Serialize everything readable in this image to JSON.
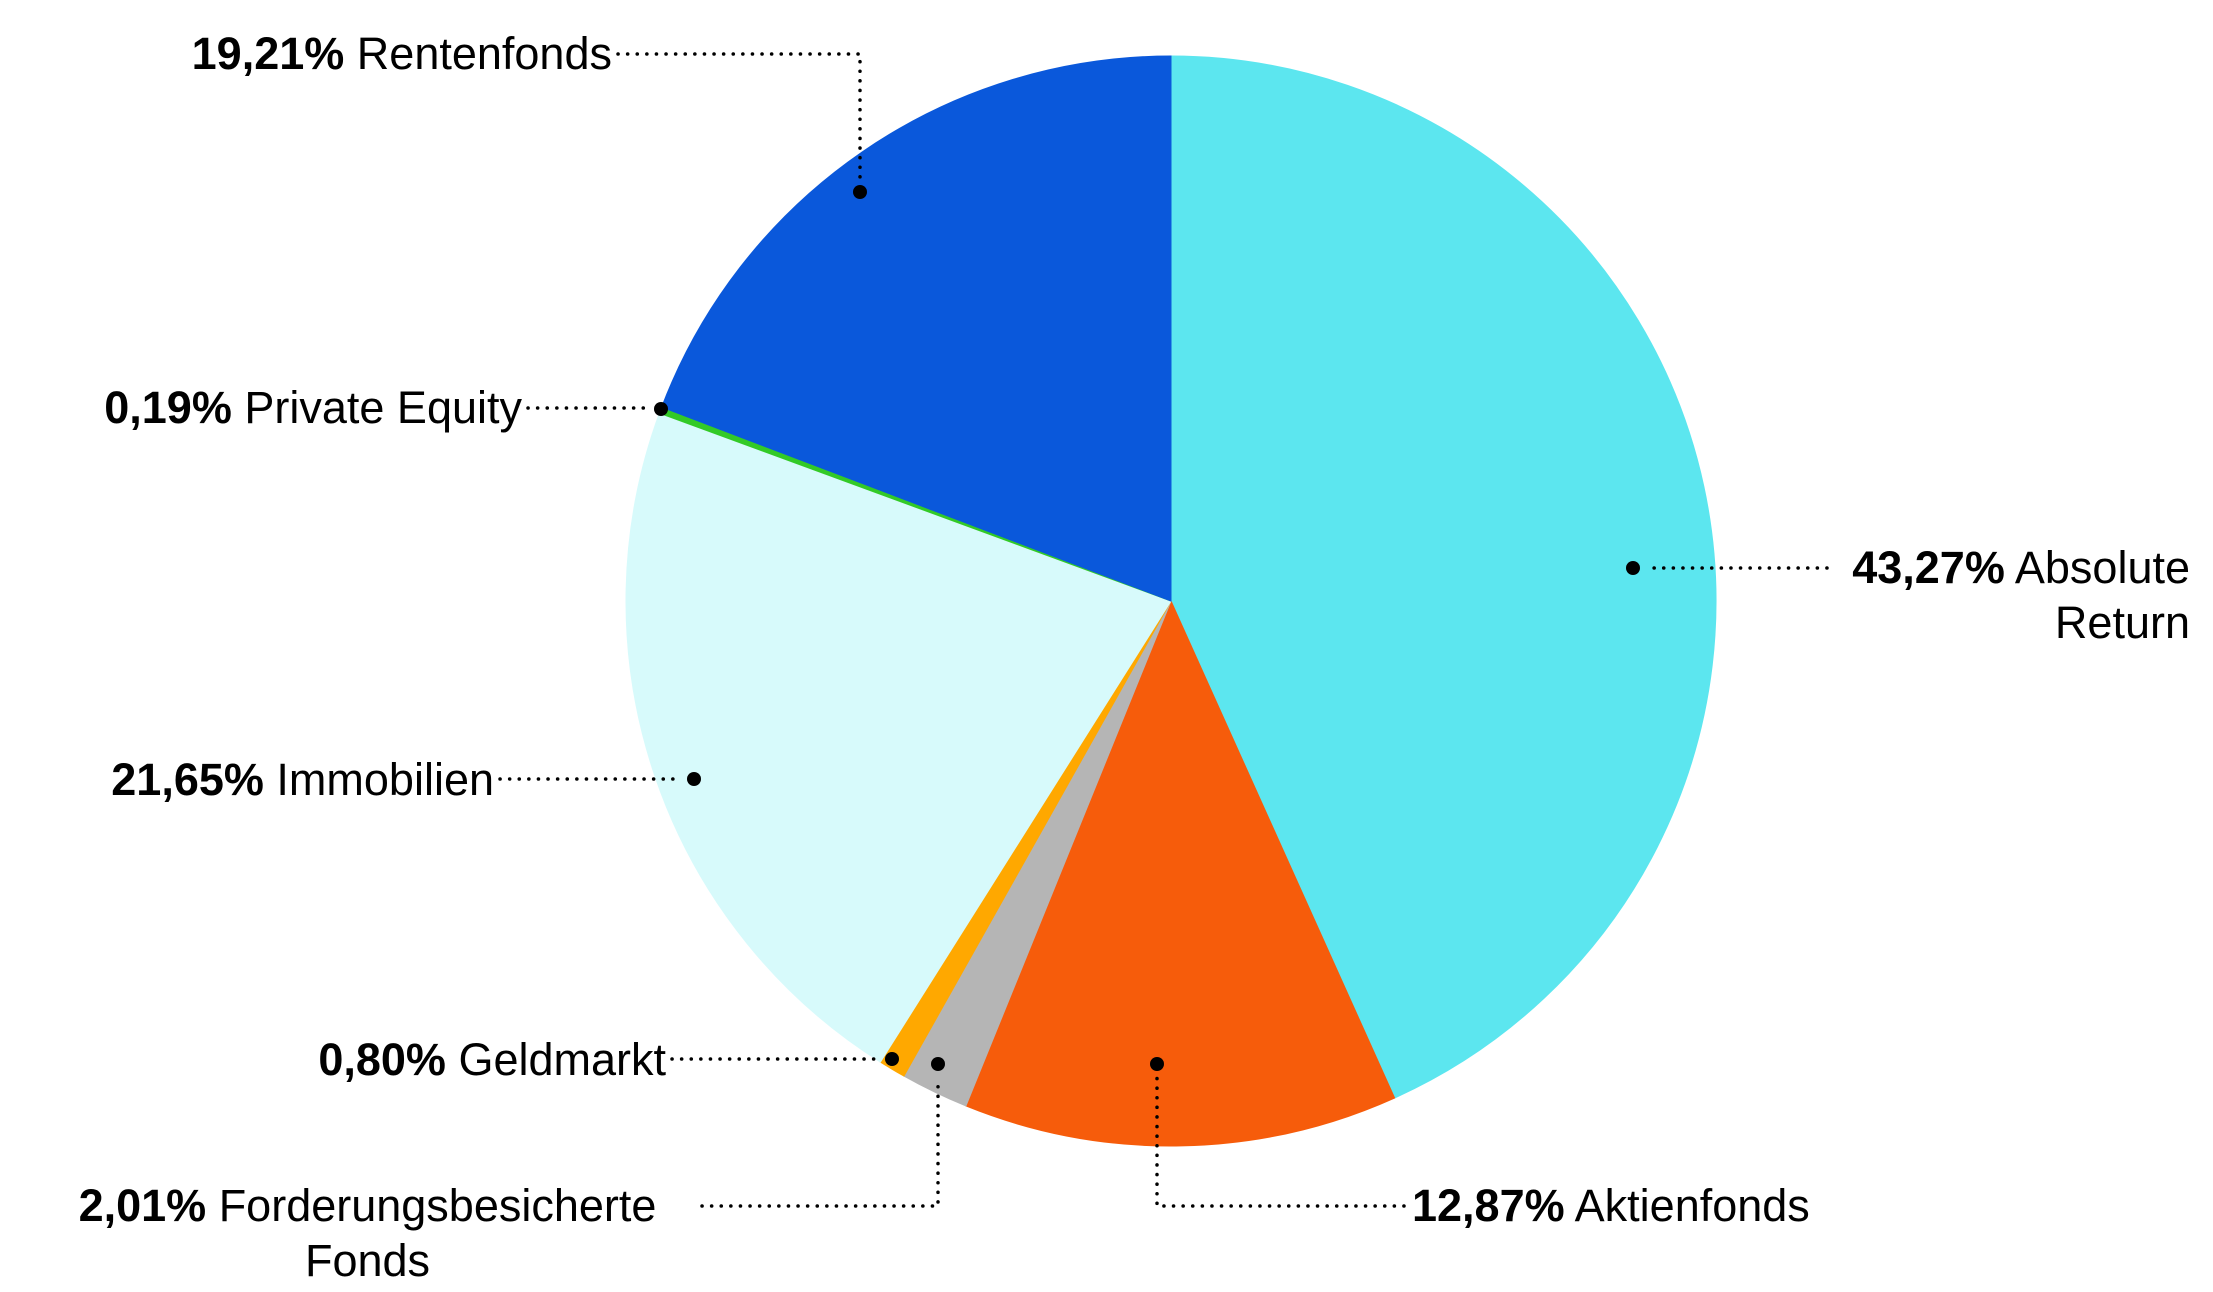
{
  "chart_data": {
    "type": "pie",
    "title": "",
    "start_angle_deg": 0,
    "direction": "clockwise",
    "legend_position": "none",
    "label_style": "external callouts with dotted leader lines and end dots",
    "background": "#FFFFFF",
    "text_color": "#000000",
    "leader_line_color": "#000000",
    "slices": [
      {
        "name": "Absolute Return",
        "pct": 43.27,
        "pct_label": "43,27%",
        "color": "#5CE6EF"
      },
      {
        "name": "Aktienfonds",
        "pct": 12.87,
        "pct_label": "12,87%",
        "color": "#F65C0B"
      },
      {
        "name": "Forderungsbesicherte Fonds",
        "pct": 2.01,
        "pct_label": "2,01%",
        "color": "#B5B5B5"
      },
      {
        "name": "Geldmarkt",
        "pct": 0.8,
        "pct_label": "0,80%",
        "color": "#FFA800"
      },
      {
        "name": "Immobilien",
        "pct": 21.65,
        "pct_label": "21,65%",
        "color": "#D7FAFB"
      },
      {
        "name": "Private Equity",
        "pct": 0.19,
        "pct_label": "0,19%",
        "color": "#33CA27"
      },
      {
        "name": "Rentenfonds",
        "pct": 19.21,
        "pct_label": "19,21%",
        "color": "#0A58DB"
      }
    ]
  }
}
